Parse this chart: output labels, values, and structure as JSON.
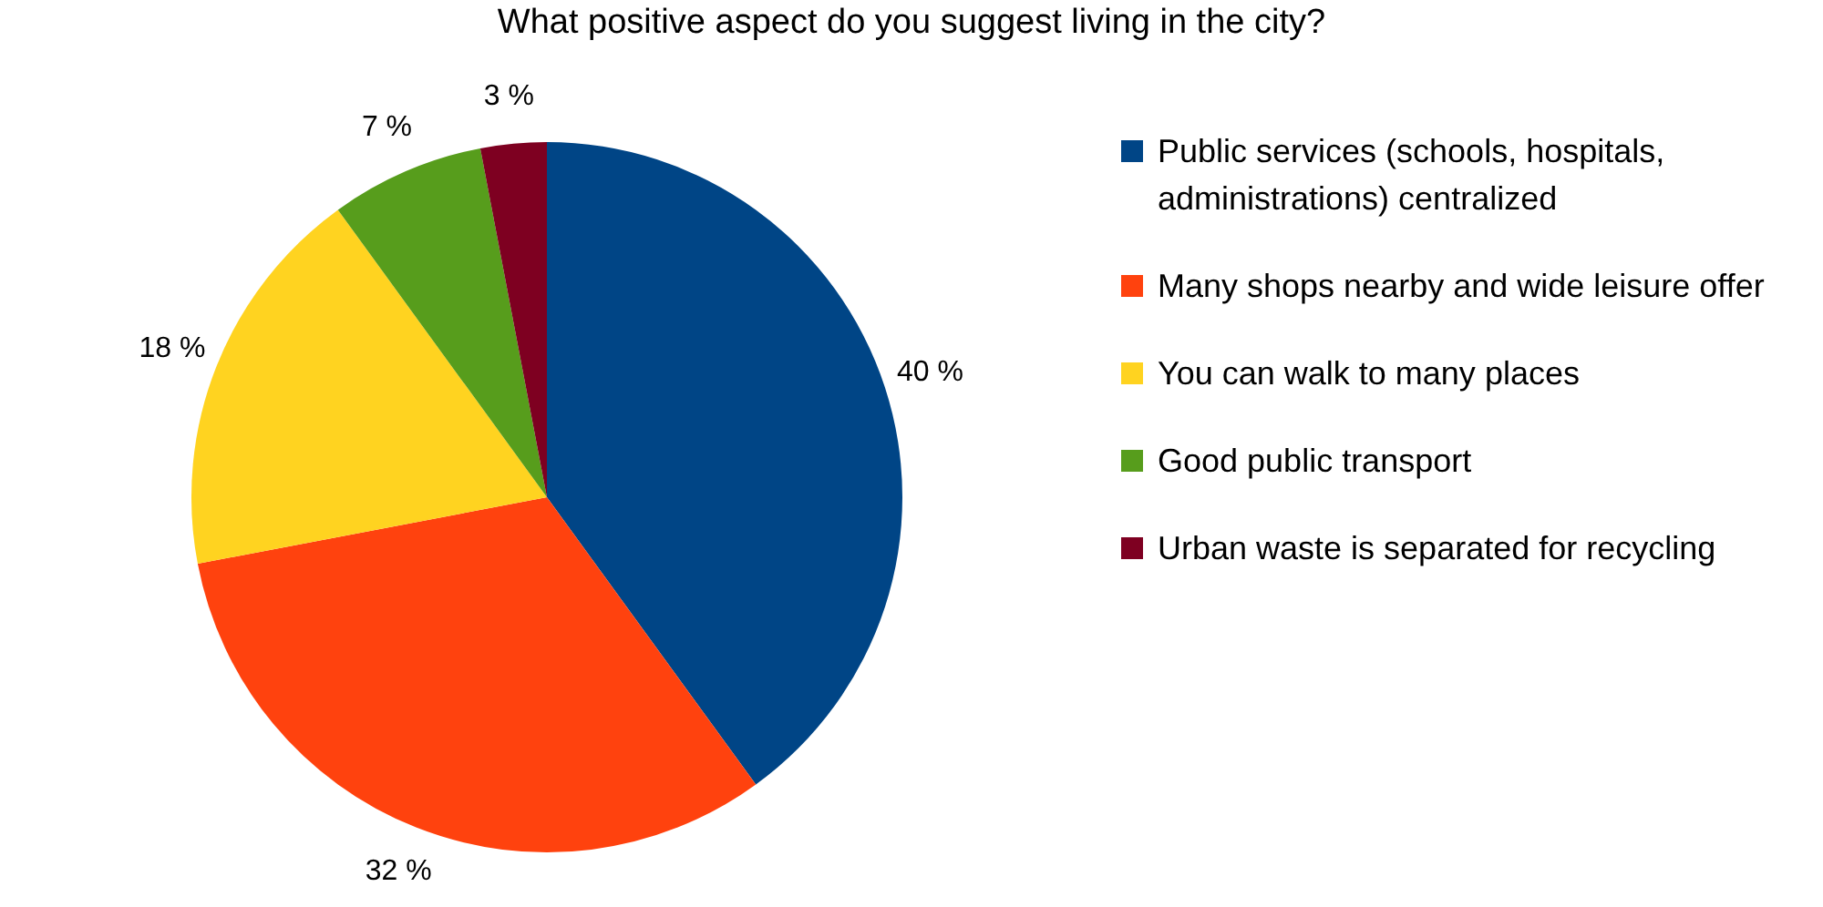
{
  "chart_data": {
    "type": "pie",
    "title": "What positive aspect do you suggest living in the city?",
    "categories": [
      "Public services (schools, hospitals, administrations) centralized",
      "Many shops nearby and wide leisure offer",
      "You can walk to many places",
      "Good public transport",
      "Urban waste is separated for recycling"
    ],
    "values": [
      40,
      32,
      18,
      7,
      3
    ],
    "colors": [
      "#004586",
      "#ff420e",
      "#ffd320",
      "#579d1c",
      "#7e0021"
    ],
    "value_labels": [
      "40 %",
      "32 %",
      "18 %",
      "7 %",
      "3 %"
    ],
    "legend": "right"
  }
}
